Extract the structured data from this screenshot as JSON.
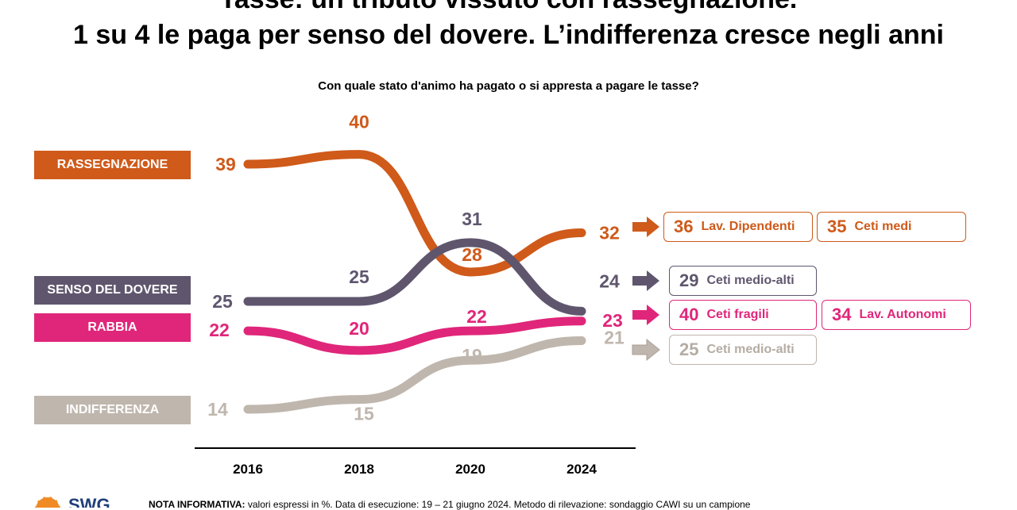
{
  "title_line1": "Tasse: un tributo vissuto con rassegnazione.",
  "title_line2": "1 su 4 le paga per senso del dovere. L’indifferenza cresce negli anni",
  "question": "Con quale stato d'animo ha pagato o si appresta a pagare le tasse?",
  "note": {
    "label": "NOTA INFORMATIVA:",
    "text": " valori espressi in %. Data di esecuzione: 19 – 21 giugno 2024. Metodo di rilevazione: sondaggio CAWI su un campione"
  },
  "logo_text": "SWG",
  "colors": {
    "rassegnazione": "#cf5a1a",
    "senso": "#5f566e",
    "rabbia": "#e0267a",
    "indifferenza": "#bfb6ad"
  },
  "chart_data": {
    "type": "line",
    "categories": [
      "2016",
      "2018",
      "2020",
      "2024"
    ],
    "ylim": [
      10,
      45
    ],
    "series": [
      {
        "name": "RASSEGNAZIONE",
        "key": "rassegnazione",
        "values": [
          39,
          40,
          28,
          32
        ]
      },
      {
        "name": "SENSO DEL DOVERE",
        "key": "senso",
        "values": [
          25,
          25,
          31,
          24
        ]
      },
      {
        "name": "RABBIA",
        "key": "rabbia",
        "values": [
          22,
          20,
          22,
          23
        ]
      },
      {
        "name": "INDIFFERENZA",
        "key": "indifferenza",
        "values": [
          14,
          15,
          19,
          21
        ]
      }
    ],
    "segments": [
      {
        "series": "rassegnazione",
        "items": [
          {
            "value": "36",
            "label": "Lav. Dipendenti"
          },
          {
            "value": "35",
            "label": "Ceti medi"
          }
        ]
      },
      {
        "series": "senso",
        "items": [
          {
            "value": "29",
            "label": "Ceti medio-alti"
          }
        ]
      },
      {
        "series": "rabbia",
        "items": [
          {
            "value": "40",
            "label": "Ceti fragili"
          },
          {
            "value": "34",
            "label": "Lav. Autonomi"
          }
        ]
      },
      {
        "series": "indifferenza",
        "items": [
          {
            "value": "25",
            "label": "Ceti medio-alti"
          }
        ]
      }
    ]
  }
}
